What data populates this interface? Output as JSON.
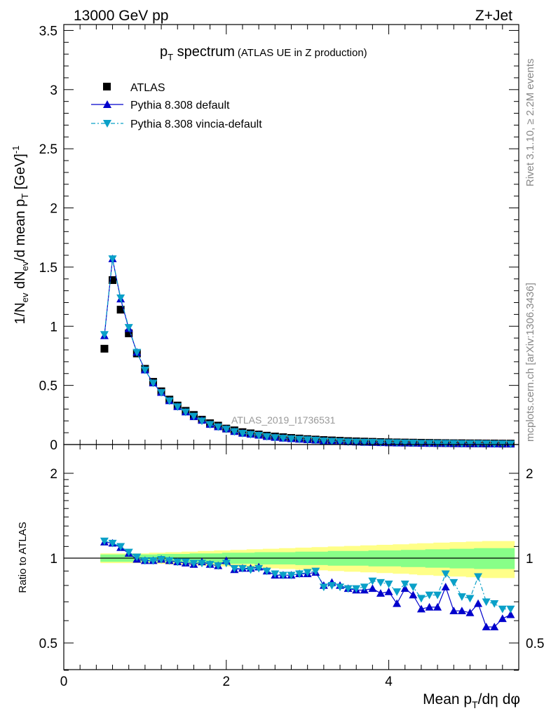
{
  "header": {
    "left": "13000 GeV pp",
    "right": "Z+Jet"
  },
  "side_text": {
    "rivet": "Rivet 3.1.10, ≥ 2.2M events",
    "mcplots": "mcplots.cern.ch [arXiv:1306.3436]"
  },
  "watermark": "ATLAS_2019_I1736531",
  "colors": {
    "atlas": "#000000",
    "pythia_default": "#0000cc",
    "pythia_vincia": "#0aa0c8",
    "band_inner": "#88ff88",
    "band_outer": "#ffff88"
  },
  "chart_data": [
    {
      "type": "line",
      "panel": "main",
      "title_main": "p",
      "title_sub": "T",
      "title_rest": " spectrum",
      "title_note": "(ATLAS UE in Z production)",
      "ylabel": "1/N_ev dN_ev/d mean p_T [GeV]^-1",
      "xlim": [
        0,
        5.6
      ],
      "ylim": [
        0,
        3.55
      ],
      "yticks": [
        "0",
        "0.5",
        "1",
        "1.5",
        "2",
        "2.5",
        "3",
        "3.5"
      ],
      "legend_position": "top-left",
      "x": [
        0.5,
        0.6,
        0.7,
        0.8,
        0.9,
        1.0,
        1.1,
        1.2,
        1.3,
        1.4,
        1.5,
        1.6,
        1.7,
        1.8,
        1.9,
        2.0,
        2.1,
        2.2,
        2.3,
        2.4,
        2.5,
        2.6,
        2.7,
        2.8,
        2.9,
        3.0,
        3.1,
        3.2,
        3.3,
        3.4,
        3.5,
        3.6,
        3.7,
        3.8,
        3.9,
        4.0,
        4.1,
        4.2,
        4.3,
        4.4,
        4.5,
        4.6,
        4.7,
        4.8,
        4.9,
        5.0,
        5.1,
        5.2,
        5.3,
        5.4,
        5.5
      ],
      "series": [
        {
          "name": "ATLAS",
          "marker": "square",
          "values": [
            0.81,
            1.39,
            1.14,
            0.94,
            0.77,
            0.64,
            0.53,
            0.45,
            0.38,
            0.33,
            0.285,
            0.25,
            0.21,
            0.18,
            0.16,
            0.135,
            0.12,
            0.105,
            0.095,
            0.085,
            0.075,
            0.068,
            0.062,
            0.056,
            0.051,
            0.046,
            0.042,
            0.038,
            0.035,
            0.032,
            0.029,
            0.027,
            0.025,
            0.023,
            0.021,
            0.019,
            0.018,
            0.017,
            0.016,
            0.015,
            0.014,
            0.013,
            0.012,
            0.011,
            0.011,
            0.01,
            0.01,
            0.009,
            0.009,
            0.008,
            0.008
          ]
        },
        {
          "name": "Pythia 8.308 default",
          "marker": "triangle-up",
          "values": [
            0.92,
            1.57,
            1.23,
            0.98,
            0.78,
            0.63,
            0.52,
            0.44,
            0.37,
            0.32,
            0.275,
            0.235,
            0.205,
            0.17,
            0.15,
            0.132,
            0.11,
            0.095,
            0.087,
            0.079,
            0.068,
            0.06,
            0.054,
            0.049,
            0.045,
            0.041,
            0.037,
            0.031,
            0.029,
            0.026,
            0.023,
            0.021,
            0.019,
            0.018,
            0.016,
            0.015,
            0.013,
            0.013,
            0.012,
            0.01,
            0.01,
            0.009,
            0.009,
            0.008,
            0.007,
            0.007,
            0.007,
            0.006,
            0.005,
            0.005,
            0.005
          ]
        },
        {
          "name": "Pythia 8.308 vincia-default",
          "marker": "triangle-down",
          "values": [
            0.93,
            1.57,
            1.24,
            0.99,
            0.78,
            0.63,
            0.52,
            0.44,
            0.37,
            0.32,
            0.275,
            0.24,
            0.2,
            0.17,
            0.15,
            0.13,
            0.11,
            0.095,
            0.086,
            0.078,
            0.068,
            0.059,
            0.054,
            0.049,
            0.045,
            0.041,
            0.037,
            0.031,
            0.028,
            0.026,
            0.023,
            0.021,
            0.02,
            0.019,
            0.017,
            0.016,
            0.015,
            0.014,
            0.013,
            0.011,
            0.011,
            0.01,
            0.01,
            0.009,
            0.008,
            0.008,
            0.008,
            0.007,
            0.006,
            0.006,
            0.005
          ]
        }
      ]
    },
    {
      "type": "line",
      "panel": "ratio",
      "xlabel": "Mean p_T/dη dφ",
      "ylabel": "Ratio to ATLAS",
      "xlim": [
        0,
        5.6
      ],
      "ylim": [
        0.35,
        2.25
      ],
      "xticks": [
        "0",
        "2",
        "4"
      ],
      "yticks": [
        "0.5",
        "1",
        "2"
      ],
      "reference": 1,
      "x": [
        0.5,
        0.6,
        0.7,
        0.8,
        0.9,
        1.0,
        1.1,
        1.2,
        1.3,
        1.4,
        1.5,
        1.6,
        1.7,
        1.8,
        1.9,
        2.0,
        2.1,
        2.2,
        2.3,
        2.4,
        2.5,
        2.6,
        2.7,
        2.8,
        2.9,
        3.0,
        3.1,
        3.2,
        3.3,
        3.4,
        3.5,
        3.6,
        3.7,
        3.8,
        3.9,
        4.0,
        4.1,
        4.2,
        4.3,
        4.4,
        4.5,
        4.6,
        4.7,
        4.8,
        4.9,
        5.0,
        5.1,
        5.2,
        5.3,
        5.4,
        5.5
      ],
      "band_inner": [
        0.03,
        0.03,
        0.03,
        0.03,
        0.03,
        0.03,
        0.03,
        0.035,
        0.035,
        0.035,
        0.035,
        0.04,
        0.04,
        0.04,
        0.04,
        0.045,
        0.045,
        0.045,
        0.045,
        0.05,
        0.05,
        0.05,
        0.05,
        0.05,
        0.055,
        0.055,
        0.055,
        0.055,
        0.06,
        0.06,
        0.06,
        0.06,
        0.06,
        0.065,
        0.065,
        0.065,
        0.065,
        0.07,
        0.07,
        0.07,
        0.075,
        0.075,
        0.075,
        0.08,
        0.08,
        0.08,
        0.085,
        0.085,
        0.085,
        0.085,
        0.085
      ],
      "band_outer": [
        0.04,
        0.04,
        0.04,
        0.04,
        0.04,
        0.04,
        0.045,
        0.045,
        0.05,
        0.05,
        0.055,
        0.055,
        0.06,
        0.06,
        0.065,
        0.065,
        0.07,
        0.07,
        0.075,
        0.075,
        0.08,
        0.08,
        0.085,
        0.085,
        0.09,
        0.09,
        0.095,
        0.095,
        0.1,
        0.1,
        0.105,
        0.105,
        0.11,
        0.11,
        0.115,
        0.115,
        0.12,
        0.12,
        0.125,
        0.13,
        0.13,
        0.135,
        0.135,
        0.14,
        0.14,
        0.145,
        0.145,
        0.15,
        0.15,
        0.15,
        0.15
      ],
      "series": [
        {
          "name": "Pythia 8.308 default",
          "marker": "triangle-up",
          "values": [
            1.14,
            1.13,
            1.09,
            1.04,
            0.99,
            0.98,
            0.98,
            0.99,
            0.98,
            0.97,
            0.96,
            0.95,
            0.97,
            0.95,
            0.94,
            0.98,
            0.91,
            0.92,
            0.92,
            0.93,
            0.9,
            0.87,
            0.87,
            0.87,
            0.88,
            0.88,
            0.89,
            0.8,
            0.82,
            0.8,
            0.78,
            0.77,
            0.77,
            0.78,
            0.75,
            0.76,
            0.69,
            0.78,
            0.74,
            0.66,
            0.67,
            0.67,
            0.79,
            0.65,
            0.65,
            0.64,
            0.69,
            0.57,
            0.57,
            0.61,
            0.63
          ]
        },
        {
          "name": "Pythia 8.308 vincia-default",
          "marker": "triangle-down",
          "values": [
            1.15,
            1.13,
            1.1,
            1.05,
            1.01,
            0.98,
            0.98,
            0.99,
            0.98,
            0.97,
            0.97,
            0.96,
            0.96,
            0.95,
            0.94,
            0.96,
            0.92,
            0.92,
            0.91,
            0.92,
            0.9,
            0.88,
            0.87,
            0.87,
            0.88,
            0.89,
            0.9,
            0.79,
            0.8,
            0.79,
            0.78,
            0.78,
            0.79,
            0.83,
            0.82,
            0.81,
            0.76,
            0.81,
            0.79,
            0.72,
            0.74,
            0.74,
            0.88,
            0.82,
            0.73,
            0.72,
            0.86,
            0.7,
            0.69,
            0.66,
            0.66
          ]
        }
      ]
    }
  ]
}
